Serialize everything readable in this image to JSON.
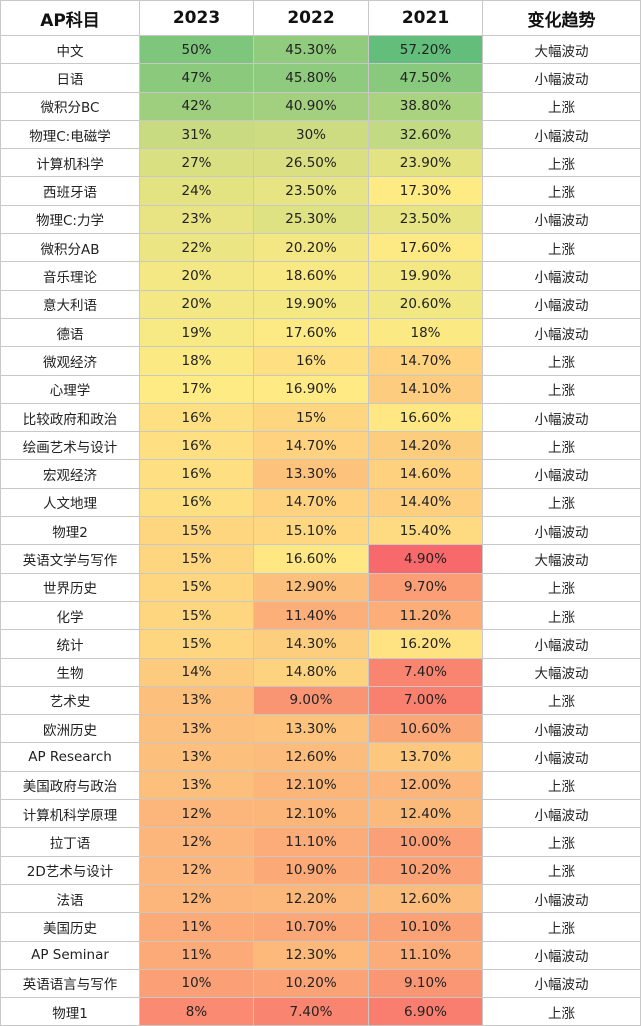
{
  "header": [
    "AP科目",
    "2023",
    "2022",
    "2021",
    "变化趋势"
  ],
  "scale": {
    "low": "#f8696b",
    "mid": "#ffeb84",
    "high": "#63be7b",
    "min": 4.9,
    "mid_value": 17,
    "max": 57.2
  },
  "rows": [
    {
      "subject": "中文",
      "y2023": "50%",
      "y2022": "45.30%",
      "y2021": "57.20%",
      "trend": "大幅波动"
    },
    {
      "subject": "日语",
      "y2023": "47%",
      "y2022": "45.80%",
      "y2021": "47.50%",
      "trend": "小幅波动"
    },
    {
      "subject": "微积分BC",
      "y2023": "42%",
      "y2022": "40.90%",
      "y2021": "38.80%",
      "trend": "上涨"
    },
    {
      "subject": "物理C:电磁学",
      "y2023": "31%",
      "y2022": "30%",
      "y2021": "32.60%",
      "trend": "小幅波动"
    },
    {
      "subject": "计算机科学",
      "y2023": "27%",
      "y2022": "26.50%",
      "y2021": "23.90%",
      "trend": "上涨"
    },
    {
      "subject": "西班牙语",
      "y2023": "24%",
      "y2022": "23.50%",
      "y2021": "17.30%",
      "trend": "上涨"
    },
    {
      "subject": "物理C:力学",
      "y2023": "23%",
      "y2022": "25.30%",
      "y2021": "23.50%",
      "trend": "小幅波动"
    },
    {
      "subject": "微积分AB",
      "y2023": "22%",
      "y2022": "20.20%",
      "y2021": "17.60%",
      "trend": "上涨"
    },
    {
      "subject": "音乐理论",
      "y2023": "20%",
      "y2022": "18.60%",
      "y2021": "19.90%",
      "trend": "小幅波动"
    },
    {
      "subject": "意大利语",
      "y2023": "20%",
      "y2022": "19.90%",
      "y2021": "20.60%",
      "trend": "小幅波动"
    },
    {
      "subject": "德语",
      "y2023": "19%",
      "y2022": "17.60%",
      "y2021": "18%",
      "trend": "小幅波动"
    },
    {
      "subject": "微观经济",
      "y2023": "18%",
      "y2022": "16%",
      "y2021": "14.70%",
      "trend": "上涨"
    },
    {
      "subject": "心理学",
      "y2023": "17%",
      "y2022": "16.90%",
      "y2021": "14.10%",
      "trend": "上涨"
    },
    {
      "subject": "比较政府和政治",
      "y2023": "16%",
      "y2022": "15%",
      "y2021": "16.60%",
      "trend": "小幅波动"
    },
    {
      "subject": "绘画艺术与设计",
      "y2023": "16%",
      "y2022": "14.70%",
      "y2021": "14.20%",
      "trend": "上涨"
    },
    {
      "subject": "宏观经济",
      "y2023": "16%",
      "y2022": "13.30%",
      "y2021": "14.60%",
      "trend": "小幅波动"
    },
    {
      "subject": "人文地理",
      "y2023": "16%",
      "y2022": "14.70%",
      "y2021": "14.40%",
      "trend": "上涨"
    },
    {
      "subject": "物理2",
      "y2023": "15%",
      "y2022": "15.10%",
      "y2021": "15.40%",
      "trend": "小幅波动"
    },
    {
      "subject": "英语文学与写作",
      "y2023": "15%",
      "y2022": "16.60%",
      "y2021": "4.90%",
      "trend": "大幅波动"
    },
    {
      "subject": "世界历史",
      "y2023": "15%",
      "y2022": "12.90%",
      "y2021": "9.70%",
      "trend": "上涨"
    },
    {
      "subject": "化学",
      "y2023": "15%",
      "y2022": "11.40%",
      "y2021": "11.20%",
      "trend": "上涨"
    },
    {
      "subject": "统计",
      "y2023": "15%",
      "y2022": "14.30%",
      "y2021": "16.20%",
      "trend": "小幅波动"
    },
    {
      "subject": "生物",
      "y2023": "14%",
      "y2022": "14.80%",
      "y2021": "7.40%",
      "trend": "大幅波动"
    },
    {
      "subject": "艺术史",
      "y2023": "13%",
      "y2022": "9.00%",
      "y2021": "7.00%",
      "trend": "上涨"
    },
    {
      "subject": "欧洲历史",
      "y2023": "13%",
      "y2022": "13.30%",
      "y2021": "10.60%",
      "trend": "小幅波动"
    },
    {
      "subject": "AP Research",
      "y2023": "13%",
      "y2022": "12.60%",
      "y2021": "13.70%",
      "trend": "小幅波动"
    },
    {
      "subject": "美国政府与政治",
      "y2023": "13%",
      "y2022": "12.10%",
      "y2021": "12.00%",
      "trend": "上涨"
    },
    {
      "subject": "计算机科学原理",
      "y2023": "12%",
      "y2022": "12.10%",
      "y2021": "12.40%",
      "trend": "小幅波动"
    },
    {
      "subject": "拉丁语",
      "y2023": "12%",
      "y2022": "11.10%",
      "y2021": "10.00%",
      "trend": "上涨"
    },
    {
      "subject": "2D艺术与设计",
      "y2023": "12%",
      "y2022": "10.90%",
      "y2021": "10.20%",
      "trend": "上涨"
    },
    {
      "subject": "法语",
      "y2023": "12%",
      "y2022": "12.20%",
      "y2021": "12.60%",
      "trend": "小幅波动"
    },
    {
      "subject": "美国历史",
      "y2023": "11%",
      "y2022": "10.70%",
      "y2021": "10.10%",
      "trend": "上涨"
    },
    {
      "subject": "AP Seminar",
      "y2023": "11%",
      "y2022": "12.30%",
      "y2021": "11.10%",
      "trend": "小幅波动"
    },
    {
      "subject": "英语语言与写作",
      "y2023": "10%",
      "y2022": "10.20%",
      "y2021": "9.10%",
      "trend": "小幅波动"
    },
    {
      "subject": "物理1",
      "y2023": "8%",
      "y2022": "7.40%",
      "y2021": "6.90%",
      "trend": "上涨"
    }
  ]
}
